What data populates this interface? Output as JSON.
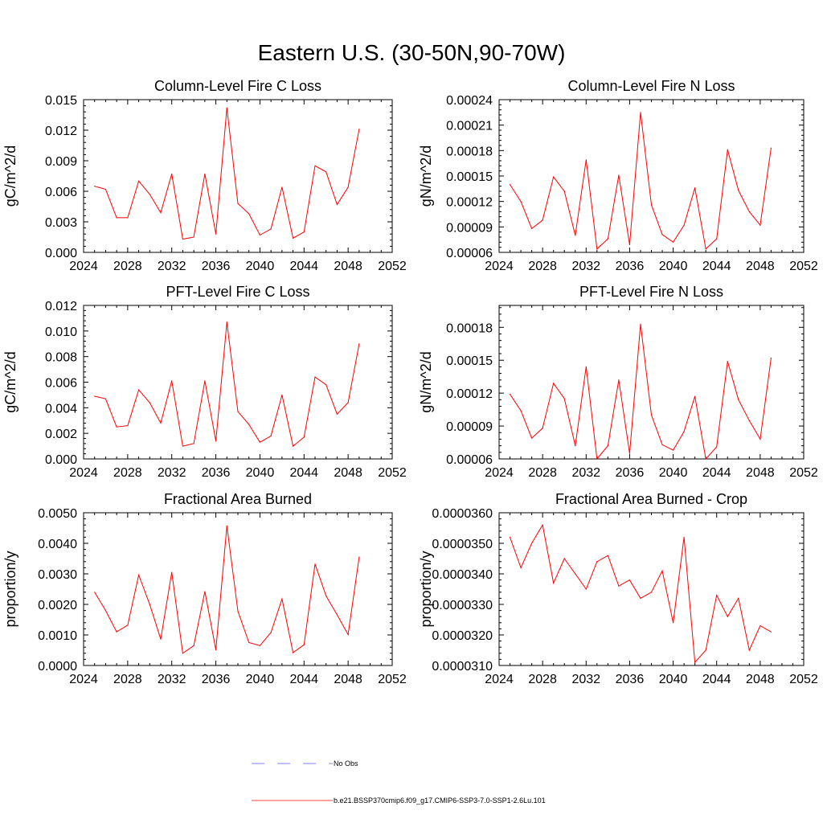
{
  "figure": {
    "title": "Eastern U.S. (30-50N,90-70W)"
  },
  "legend": {
    "entries": [
      {
        "label": "No Obs",
        "color": "#5555ff",
        "style": "dashed"
      },
      {
        "label": "b.e21.BSSP370cmip6.f09_g17.CMIP6-SSP3-7.0-SSP1-2.6Lu.101",
        "color": "#ff0000",
        "style": "solid"
      }
    ]
  },
  "chart_data": [
    {
      "type": "line",
      "title": "Column-Level Fire C Loss",
      "xlabel": "",
      "ylabel": "gC/m^2/d",
      "xlim": [
        2024,
        2052
      ],
      "ylim": [
        0,
        0.015
      ],
      "xticks": [
        "2024",
        "2028",
        "2032",
        "2036",
        "2040",
        "2044",
        "2048",
        "2052"
      ],
      "yticks": [
        "0.000",
        "0.003",
        "0.006",
        "0.009",
        "0.012",
        "0.015"
      ],
      "x": [
        2025,
        2026,
        2027,
        2028,
        2029,
        2030,
        2031,
        2032,
        2033,
        2034,
        2035,
        2036,
        2037,
        2038,
        2039,
        2040,
        2041,
        2042,
        2043,
        2044,
        2045,
        2046,
        2047,
        2048,
        2049
      ],
      "series": [
        {
          "color": "#ff0000",
          "values": [
            0.0065,
            0.0062,
            0.0034,
            0.0034,
            0.007,
            0.0057,
            0.0039,
            0.0077,
            0.0013,
            0.0015,
            0.0077,
            0.0018,
            0.0142,
            0.0048,
            0.0038,
            0.0017,
            0.0023,
            0.0064,
            0.0014,
            0.002,
            0.0085,
            0.0079,
            0.0047,
            0.0064,
            0.0121
          ]
        }
      ]
    },
    {
      "type": "line",
      "title": "Column-Level Fire N Loss",
      "xlabel": "",
      "ylabel": "gN/m^2/d",
      "xlim": [
        2024,
        2052
      ],
      "ylim": [
        6e-05,
        0.00024
      ],
      "xticks": [
        "2024",
        "2028",
        "2032",
        "2036",
        "2040",
        "2044",
        "2048",
        "2052"
      ],
      "yticks": [
        "0.00006",
        "0.00009",
        "0.00012",
        "0.00015",
        "0.00018",
        "0.00021",
        "0.00024"
      ],
      "x": [
        2025,
        2026,
        2027,
        2028,
        2029,
        2030,
        2031,
        2032,
        2033,
        2034,
        2035,
        2036,
        2037,
        2038,
        2039,
        2040,
        2041,
        2042,
        2043,
        2044,
        2045,
        2046,
        2047,
        2048,
        2049
      ],
      "series": [
        {
          "color": "#ff0000",
          "values": [
            0.00014,
            0.00012,
            8.8e-05,
            9.8e-05,
            0.000149,
            0.000132,
            8e-05,
            0.000169,
            6.4e-05,
            7.6e-05,
            0.000151,
            6.9e-05,
            0.000225,
            0.000116,
            8.1e-05,
            7.2e-05,
            9.2e-05,
            0.000136,
            6.4e-05,
            7.6e-05,
            0.000181,
            0.000133,
            0.000108,
            9.2e-05,
            0.000183
          ]
        }
      ]
    },
    {
      "type": "line",
      "title": "PFT-Level Fire C Loss",
      "xlabel": "",
      "ylabel": "gC/m^2/d",
      "xlim": [
        2024,
        2052
      ],
      "ylim": [
        0,
        0.012
      ],
      "xticks": [
        "2024",
        "2028",
        "2032",
        "2036",
        "2040",
        "2044",
        "2048",
        "2052"
      ],
      "yticks": [
        "0.000",
        "0.002",
        "0.004",
        "0.006",
        "0.008",
        "0.010",
        "0.012"
      ],
      "x": [
        2025,
        2026,
        2027,
        2028,
        2029,
        2030,
        2031,
        2032,
        2033,
        2034,
        2035,
        2036,
        2037,
        2038,
        2039,
        2040,
        2041,
        2042,
        2043,
        2044,
        2045,
        2046,
        2047,
        2048,
        2049
      ],
      "series": [
        {
          "color": "#ff0000",
          "values": [
            0.0049,
            0.0047,
            0.0025,
            0.0026,
            0.0054,
            0.0044,
            0.0028,
            0.0061,
            0.001,
            0.0012,
            0.0061,
            0.0014,
            0.0107,
            0.0037,
            0.0027,
            0.0013,
            0.0018,
            0.005,
            0.001,
            0.0017,
            0.0064,
            0.0058,
            0.0035,
            0.0044,
            0.009
          ]
        }
      ]
    },
    {
      "type": "line",
      "title": "PFT-Level Fire N Loss",
      "xlabel": "",
      "ylabel": "gN/m^2/d",
      "xlim": [
        2024,
        2052
      ],
      "ylim": [
        6e-05,
        0.0002
      ],
      "xticks": [
        "2024",
        "2028",
        "2032",
        "2036",
        "2040",
        "2044",
        "2048",
        "2052"
      ],
      "yticks": [
        "0.00006",
        "0.00009",
        "0.00012",
        "0.00015",
        "0.00018"
      ],
      "x": [
        2025,
        2026,
        2027,
        2028,
        2029,
        2030,
        2031,
        2032,
        2033,
        2034,
        2035,
        2036,
        2037,
        2038,
        2039,
        2040,
        2041,
        2042,
        2043,
        2044,
        2045,
        2046,
        2047,
        2048,
        2049
      ],
      "series": [
        {
          "color": "#ff0000",
          "values": [
            0.000119,
            0.000104,
            7.9e-05,
            8.8e-05,
            0.000129,
            0.000115,
            7.2e-05,
            0.000144,
            6e-05,
            7.2e-05,
            0.000132,
            6.5e-05,
            0.000183,
            0.0001,
            7.3e-05,
            6.8e-05,
            8.5e-05,
            0.000117,
            6e-05,
            7.1e-05,
            0.000149,
            0.000114,
            9.5e-05,
            7.8e-05,
            0.000152
          ]
        }
      ]
    },
    {
      "type": "line",
      "title": "Fractional Area Burned",
      "xlabel": "",
      "ylabel": "proportion/y",
      "xlim": [
        2024,
        2052
      ],
      "ylim": [
        0,
        0.005
      ],
      "xticks": [
        "2024",
        "2028",
        "2032",
        "2036",
        "2040",
        "2044",
        "2048",
        "2052"
      ],
      "yticks": [
        "0.0000",
        "0.0010",
        "0.0020",
        "0.0030",
        "0.0040",
        "0.0050"
      ],
      "x": [
        2025,
        2026,
        2027,
        2028,
        2029,
        2030,
        2031,
        2032,
        2033,
        2034,
        2035,
        2036,
        2037,
        2038,
        2039,
        2040,
        2041,
        2042,
        2043,
        2044,
        2045,
        2046,
        2047,
        2048,
        2049
      ],
      "series": [
        {
          "color": "#ff0000",
          "values": [
            0.0024,
            0.0018,
            0.0011,
            0.00132,
            0.00296,
            0.002,
            0.00086,
            0.00305,
            0.0004,
            0.00065,
            0.00242,
            0.00051,
            0.00457,
            0.00178,
            0.00075,
            0.00065,
            0.00108,
            0.00218,
            0.00042,
            0.00068,
            0.00332,
            0.00228,
            0.00166,
            0.00101,
            0.00355
          ]
        }
      ]
    },
    {
      "type": "line",
      "title": "Fractional Area Burned - Crop",
      "xlabel": "",
      "ylabel": "proportion/y",
      "xlim": [
        2024,
        2052
      ],
      "ylim": [
        3.1e-05,
        3.6e-05
      ],
      "xticks": [
        "2024",
        "2028",
        "2032",
        "2036",
        "2040",
        "2044",
        "2048",
        "2052"
      ],
      "yticks": [
        "0.0000310",
        "0.0000320",
        "0.0000330",
        "0.0000340",
        "0.0000350",
        "0.0000360"
      ],
      "x": [
        2025,
        2026,
        2027,
        2028,
        2029,
        2030,
        2031,
        2032,
        2033,
        2034,
        2035,
        2036,
        2037,
        2038,
        2039,
        2040,
        2041,
        2042,
        2043,
        2044,
        2045,
        2046,
        2047,
        2048,
        2049
      ],
      "series": [
        {
          "color": "#ff0000",
          "values": [
            3.52e-05,
            3.42e-05,
            3.5e-05,
            3.56e-05,
            3.37e-05,
            3.45e-05,
            3.4e-05,
            3.35e-05,
            3.44e-05,
            3.46e-05,
            3.36e-05,
            3.38e-05,
            3.32e-05,
            3.34e-05,
            3.41e-05,
            3.24e-05,
            3.52e-05,
            3.11e-05,
            3.15e-05,
            3.33e-05,
            3.26e-05,
            3.32e-05,
            3.15e-05,
            3.23e-05,
            3.21e-05
          ]
        }
      ]
    }
  ]
}
